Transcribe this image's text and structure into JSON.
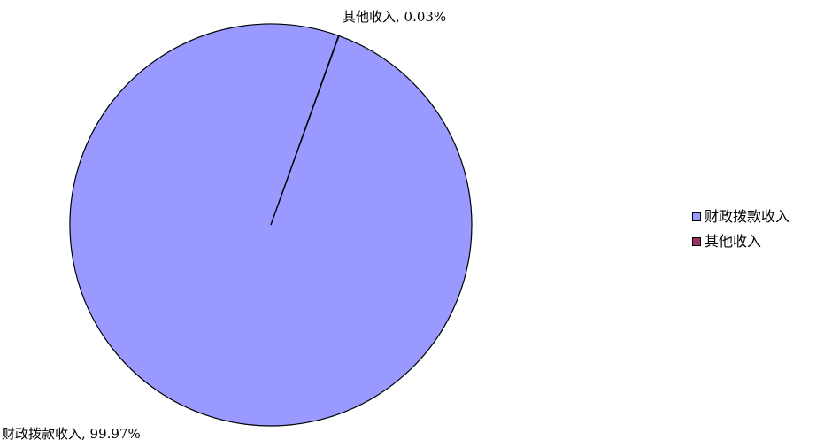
{
  "chart_data": {
    "type": "pie",
    "title": "",
    "categories": [
      "财政拨款收入",
      "其他收入"
    ],
    "values": [
      99.97,
      0.03
    ],
    "unit": "%",
    "data_labels": [
      "财政拨款收入, 99.97%",
      "其他收入, 0.03%"
    ],
    "colors": [
      "#9999ff",
      "#993366"
    ],
    "legend_position": "right",
    "legend": [
      "财政拨款收入",
      "其他收入"
    ]
  }
}
